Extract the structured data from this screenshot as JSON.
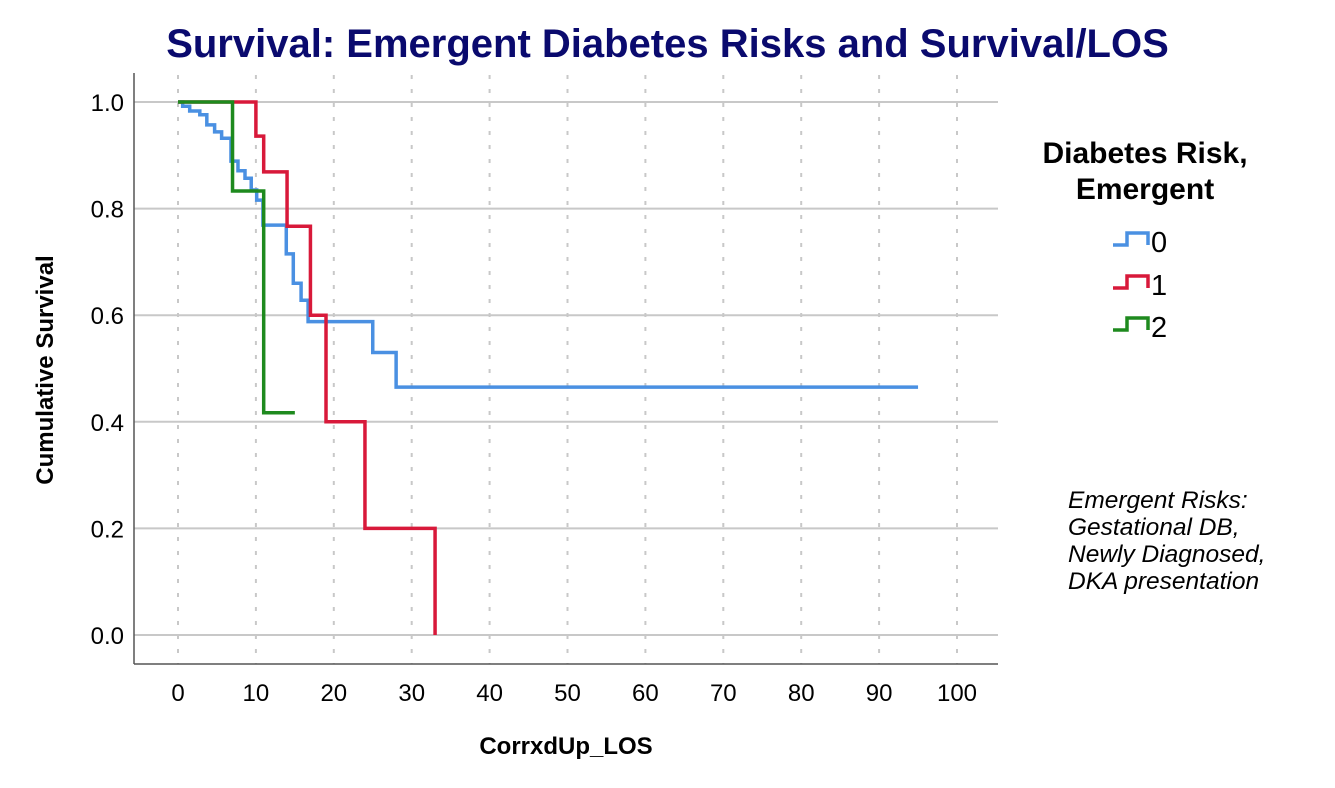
{
  "chart_data": {
    "type": "line",
    "subtype": "kaplan-meier-step",
    "title": "Survival: Emergent Diabetes Risks and Survival/LOS",
    "xlabel": "CorrxdUp_LOS",
    "ylabel": "Cumulative Survival",
    "xlim": [
      0,
      100
    ],
    "ylim": [
      0,
      1.0
    ],
    "xticks": [
      "0",
      "10",
      "20",
      "30",
      "40",
      "50",
      "60",
      "70",
      "80",
      "90",
      "100"
    ],
    "yticks": [
      "0.0",
      "0.2",
      "0.4",
      "0.6",
      "0.8",
      "1.0"
    ],
    "xtick_values": [
      0,
      10,
      20,
      30,
      40,
      50,
      60,
      70,
      80,
      90,
      100
    ],
    "ytick_values": [
      0,
      0.2,
      0.4,
      0.6,
      0.8,
      1.0
    ],
    "grid": {
      "horizontal": "solid",
      "vertical": "dotted"
    },
    "legend": {
      "title": "Diabetes Risk,",
      "title_line2": "Emergent",
      "placement": "right"
    },
    "series": [
      {
        "name": "0",
        "color": "#4a90e2",
        "steps": [
          [
            0,
            1.0
          ],
          [
            0.6,
            0.992
          ],
          [
            1.5,
            0.983
          ],
          [
            2.8,
            0.976
          ],
          [
            3.7,
            0.957
          ],
          [
            4.7,
            0.944
          ],
          [
            5.6,
            0.932
          ],
          [
            6.8,
            0.889
          ],
          [
            7.7,
            0.871
          ],
          [
            8.6,
            0.857
          ],
          [
            9.4,
            0.835
          ],
          [
            10.1,
            0.816
          ],
          [
            10.9,
            0.769
          ],
          [
            13.9,
            0.715
          ],
          [
            14.8,
            0.66
          ],
          [
            15.8,
            0.628
          ],
          [
            16.7,
            0.588
          ],
          [
            25,
            0.53
          ],
          [
            28,
            0.465
          ]
        ],
        "end": 95
      },
      {
        "name": "1",
        "color": "#d8193a",
        "steps": [
          [
            0,
            1.0
          ],
          [
            10,
            0.936
          ],
          [
            11,
            0.869
          ],
          [
            14,
            0.767
          ],
          [
            17,
            0.6
          ],
          [
            19,
            0.4
          ],
          [
            24,
            0.2
          ],
          [
            33,
            0.0
          ]
        ],
        "end": 33
      },
      {
        "name": "2",
        "color": "#1e8a1e",
        "steps": [
          [
            0,
            1.0
          ],
          [
            7,
            0.833
          ],
          [
            11,
            0.417
          ]
        ],
        "end": 15
      }
    ],
    "annotation": [
      "Emergent Risks:",
      "Gestational DB,",
      "Newly Diagnosed,",
      "DKA presentation"
    ]
  }
}
